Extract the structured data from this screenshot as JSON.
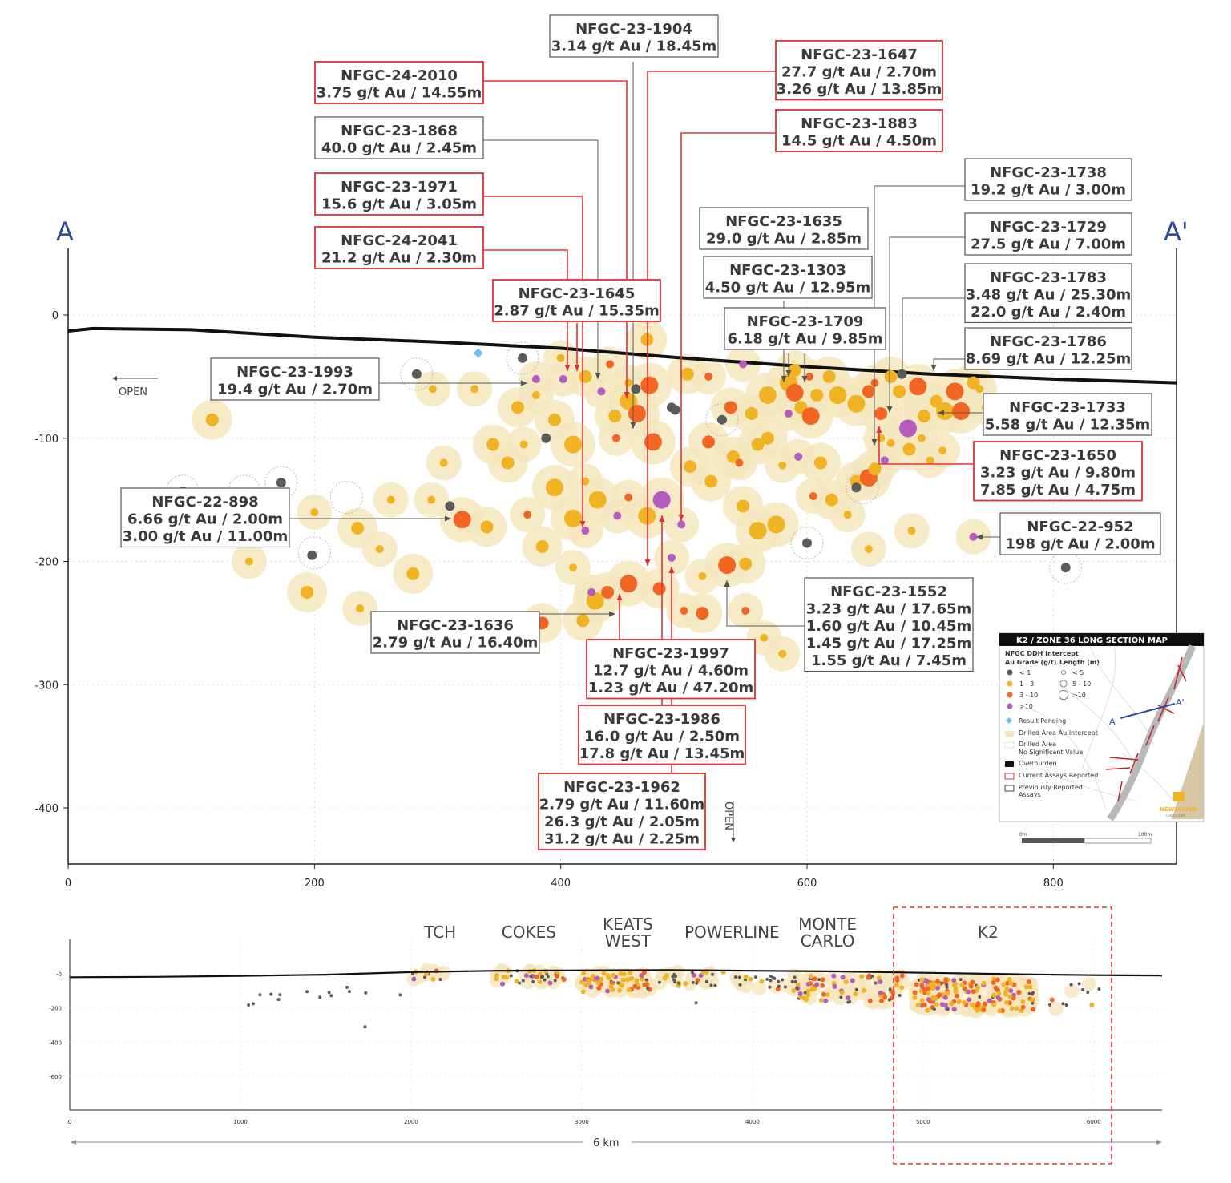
{
  "colors": {
    "grade_lt1": "#5b5b5b",
    "grade_1_3": "#f0b323",
    "grade_3_10": "#f26522",
    "grade_gt10": "#b55cbe",
    "halo": "#f5e6bd",
    "result_pending": "#6fc0ea",
    "current_box": "#e03236",
    "previous_box": "#555555",
    "section_blue": "#2b4aa0",
    "zone_box": "#e03236"
  },
  "section_labels": {
    "left": "A",
    "right": "A'"
  },
  "open_labels": {
    "left": "OPEN",
    "bottom": "OPEN"
  },
  "chart_data": [
    {
      "type": "scatter",
      "title": "",
      "xlabel": "",
      "ylabel": "",
      "xlim": [
        0,
        900
      ],
      "ylim": [
        -450,
        60
      ],
      "xticks": [
        "0",
        "200",
        "400",
        "600",
        "800"
      ],
      "yticks": [
        "0",
        "-100",
        "-200",
        "-300",
        "-400"
      ],
      "grid": true,
      "overburden": [
        [
          0,
          -13
        ],
        [
          20,
          -11
        ],
        [
          100,
          -12
        ],
        [
          200,
          -18
        ],
        [
          300,
          -22
        ],
        [
          400,
          -27
        ],
        [
          500,
          -35
        ],
        [
          600,
          -42
        ],
        [
          700,
          -48
        ],
        [
          800,
          -52
        ],
        [
          900,
          -55
        ]
      ],
      "intercepts": [
        [
          117,
          -85,
          "1-3",
          "m"
        ],
        [
          296,
          -60,
          "1-3",
          "s"
        ],
        [
          330,
          -60,
          "1-3",
          "s"
        ],
        [
          345,
          -105,
          "1-3",
          "m"
        ],
        [
          365,
          -75,
          "1-3",
          "m"
        ],
        [
          357,
          -120,
          "1-3",
          "m"
        ],
        [
          400,
          -35,
          "1-3",
          "s"
        ],
        [
          420,
          -50,
          "1-3",
          "m"
        ],
        [
          370,
          -105,
          "1-3",
          "s"
        ],
        [
          380,
          -65,
          "1-3",
          "s"
        ],
        [
          395,
          -85,
          "1-3",
          "m"
        ],
        [
          410,
          -105,
          "1-3",
          "l"
        ],
        [
          395,
          -140,
          "1-3",
          "l"
        ],
        [
          420,
          -135,
          "1-3",
          "s"
        ],
        [
          430,
          -150,
          "1-3",
          "l"
        ],
        [
          410,
          -165,
          "1-3",
          "l"
        ],
        [
          440,
          -40,
          "3-10",
          "s"
        ],
        [
          455,
          -70,
          "1-3",
          "l"
        ],
        [
          462,
          -80,
          "3-10",
          "l"
        ],
        [
          472,
          -57,
          "3-10",
          "l"
        ],
        [
          444,
          -82,
          "1-3",
          "m"
        ],
        [
          455,
          -55,
          "1-3",
          "s"
        ],
        [
          475,
          -103,
          "3-10",
          "l"
        ],
        [
          445,
          -100,
          "3-10",
          "s"
        ],
        [
          433,
          -62,
          "gt10",
          "s"
        ],
        [
          380,
          -52,
          "gt10",
          "s"
        ],
        [
          402,
          -52,
          "gt10",
          "s"
        ],
        [
          446,
          -163,
          "gt10",
          "s"
        ],
        [
          420,
          -175,
          "gt10",
          "s"
        ],
        [
          470,
          -20,
          "1-3",
          "m"
        ],
        [
          305,
          -120,
          "1-3",
          "s"
        ],
        [
          295,
          -150,
          "1-3",
          "s"
        ],
        [
          320,
          -166,
          "3-10",
          "l"
        ],
        [
          340,
          -172,
          "1-3",
          "m"
        ],
        [
          200,
          -160,
          "1-3",
          "s"
        ],
        [
          147,
          -200,
          "1-3",
          "s"
        ],
        [
          194,
          -225,
          "1-3",
          "m"
        ],
        [
          235,
          -173,
          "1-3",
          "m"
        ],
        [
          253,
          -190,
          "1-3",
          "s"
        ],
        [
          262,
          -150,
          "1-3",
          "s"
        ],
        [
          280,
          -210,
          "1-3",
          "m"
        ],
        [
          237,
          -238,
          "1-3",
          "s"
        ],
        [
          373,
          -162,
          "3-10",
          "s"
        ],
        [
          385,
          -188,
          "1-3",
          "m"
        ],
        [
          410,
          -205,
          "1-3",
          "s"
        ],
        [
          455,
          -148,
          "3-10",
          "s"
        ],
        [
          470,
          -163,
          "1-3",
          "l"
        ],
        [
          482,
          -150,
          "gt10",
          "l"
        ],
        [
          498,
          -170,
          "gt10",
          "s"
        ],
        [
          505,
          -123,
          "1-3",
          "m"
        ],
        [
          520,
          -103,
          "3-10",
          "m"
        ],
        [
          522,
          -135,
          "1-3",
          "m"
        ],
        [
          540,
          -115,
          "1-3",
          "m"
        ],
        [
          548,
          -155,
          "1-3",
          "m"
        ],
        [
          490,
          -197,
          "gt10",
          "s"
        ],
        [
          515,
          -212,
          "1-3",
          "s"
        ],
        [
          535,
          -203,
          "3-10",
          "l"
        ],
        [
          550,
          -202,
          "1-3",
          "m"
        ],
        [
          480,
          -222,
          "3-10",
          "m"
        ],
        [
          455,
          -218,
          "3-10",
          "l"
        ],
        [
          438,
          -225,
          "3-10",
          "m"
        ],
        [
          428,
          -232,
          "1-3",
          "l"
        ],
        [
          418,
          -248,
          "1-3",
          "m"
        ],
        [
          385,
          -250,
          "3-10",
          "m"
        ],
        [
          425,
          -225,
          "gt10",
          "s"
        ],
        [
          500,
          -240,
          "3-10",
          "s"
        ],
        [
          515,
          -242,
          "3-10",
          "m"
        ],
        [
          550,
          -240,
          "3-10",
          "s"
        ],
        [
          580,
          -275,
          "1-3",
          "s"
        ],
        [
          565,
          -262,
          "1-3",
          "s"
        ],
        [
          560,
          -175,
          "1-3",
          "l"
        ],
        [
          575,
          -170,
          "1-3",
          "l"
        ],
        [
          545,
          -120,
          "3-10",
          "s"
        ],
        [
          560,
          -105,
          "1-3",
          "m"
        ],
        [
          568,
          -100,
          "1-3",
          "m"
        ],
        [
          580,
          -122,
          "1-3",
          "s"
        ],
        [
          593,
          -115,
          "gt10",
          "s"
        ],
        [
          611,
          -120,
          "1-3",
          "m"
        ],
        [
          605,
          -147,
          "3-10",
          "s"
        ],
        [
          620,
          -150,
          "1-3",
          "m"
        ],
        [
          640,
          -135,
          "1-3",
          "m"
        ],
        [
          650,
          -132,
          "3-10",
          "l"
        ],
        [
          655,
          -125,
          "1-3",
          "m"
        ],
        [
          650,
          -190,
          "1-3",
          "s"
        ],
        [
          633,
          -162,
          "1-3",
          "s"
        ],
        [
          663,
          -118,
          "gt10",
          "s"
        ],
        [
          668,
          -104,
          "1-3",
          "s"
        ],
        [
          683,
          -109,
          "1-3",
          "m"
        ],
        [
          700,
          -118,
          "1-3",
          "s"
        ],
        [
          710,
          -110,
          "1-3",
          "s"
        ],
        [
          520,
          -50,
          "3-10",
          "s"
        ],
        [
          538,
          -75,
          "3-10",
          "m"
        ],
        [
          555,
          -80,
          "1-3",
          "m"
        ],
        [
          568,
          -65,
          "1-3",
          "l"
        ],
        [
          585,
          -55,
          "1-3",
          "l"
        ],
        [
          590,
          -63,
          "3-10",
          "l"
        ],
        [
          595,
          -75,
          "1-3",
          "m"
        ],
        [
          603,
          -82,
          "3-10",
          "l"
        ],
        [
          608,
          -65,
          "1-3",
          "m"
        ],
        [
          618,
          -50,
          "1-3",
          "m"
        ],
        [
          625,
          -65,
          "1-3",
          "l"
        ],
        [
          640,
          -72,
          "1-3",
          "l"
        ],
        [
          650,
          -62,
          "3-10",
          "m"
        ],
        [
          660,
          -80,
          "3-10",
          "m"
        ],
        [
          655,
          -55,
          "3-10",
          "s"
        ],
        [
          668,
          -50,
          "1-3",
          "m"
        ],
        [
          675,
          -62,
          "1-3",
          "m"
        ],
        [
          690,
          -58,
          "3-10",
          "l"
        ],
        [
          695,
          -82,
          "1-3",
          "m"
        ],
        [
          705,
          -70,
          "1-3",
          "m"
        ],
        [
          712,
          -78,
          "1-3",
          "l"
        ],
        [
          720,
          -62,
          "3-10",
          "l"
        ],
        [
          725,
          -78,
          "3-10",
          "l"
        ],
        [
          735,
          -55,
          "1-3",
          "m"
        ],
        [
          740,
          -60,
          "1-3",
          "s"
        ],
        [
          745,
          -75,
          "1-3",
          "s"
        ],
        [
          590,
          -45,
          "1-3",
          "m"
        ],
        [
          602,
          -50,
          "3-10",
          "s"
        ],
        [
          585,
          -80,
          "gt10",
          "s"
        ],
        [
          682,
          -92,
          "gt10",
          "l"
        ],
        [
          693,
          -100,
          "1-3",
          "s"
        ],
        [
          735,
          -180,
          "gt10",
          "s"
        ],
        [
          685,
          -175,
          "1-3",
          "s"
        ],
        [
          503,
          -48,
          "1-3",
          "m"
        ],
        [
          548,
          -40,
          "gt10",
          "s"
        ],
        [
          660,
          -100,
          "1-3",
          "s"
        ]
      ],
      "low_grade_holes": [
        [
          93,
          -143
        ],
        [
          173,
          -136
        ],
        [
          198,
          -195
        ],
        [
          283,
          -48
        ],
        [
          310,
          -155
        ],
        [
          369,
          -35
        ],
        [
          388,
          -100
        ],
        [
          461,
          -60
        ],
        [
          490,
          -75
        ],
        [
          493,
          -77
        ],
        [
          531,
          -85
        ],
        [
          600,
          -185
        ],
        [
          640,
          -140
        ],
        [
          677,
          -48
        ],
        [
          810,
          -205
        ]
      ],
      "no_significant": [
        [
          93,
          -143
        ],
        [
          143,
          -143
        ],
        [
          173,
          -136
        ],
        [
          200,
          -193
        ],
        [
          226,
          -148
        ],
        [
          283,
          -48
        ],
        [
          369,
          -35
        ],
        [
          531,
          -85
        ],
        [
          600,
          -185
        ],
        [
          810,
          -205
        ],
        [
          645,
          -140
        ]
      ],
      "pending": [
        [
          333,
          -31
        ]
      ]
    },
    {
      "type": "scatter",
      "title": "",
      "xlim": [
        0,
        6400
      ],
      "ylim": [
        -700,
        100
      ],
      "xticks": [
        "0",
        "1000",
        "2000",
        "3000",
        "4000",
        "5000",
        "6000"
      ],
      "yticks": [
        "-0",
        "-200",
        "-400",
        "-600"
      ],
      "zones": [
        "TCH",
        "COKES",
        "KEATS\nWEST",
        "POWERLINE",
        "MONTE\nCARLO",
        "K2"
      ],
      "zone_x": [
        2170,
        2690,
        3270,
        3880,
        4440,
        5380
      ],
      "distance_label": "6 km",
      "k2_box_x": [
        4850,
        6120
      ]
    }
  ],
  "callouts": [
    {
      "id": "nfgc-23-1904",
      "lines": [
        "NFGC-23-1904",
        "3.14 g/t Au / 18.45m"
      ],
      "status": "previous"
    },
    {
      "id": "nfgc-24-2010",
      "lines": [
        "NFGC-24-2010",
        "3.75 g/t Au / 14.55m"
      ],
      "status": "current"
    },
    {
      "id": "nfgc-23-1647",
      "lines": [
        "NFGC-23-1647",
        "27.7 g/t Au / 2.70m",
        "3.26 g/t Au / 13.85m"
      ],
      "status": "current"
    },
    {
      "id": "nfgc-23-1868",
      "lines": [
        "NFGC-23-1868",
        "40.0 g/t Au / 2.45m"
      ],
      "status": "previous"
    },
    {
      "id": "nfgc-23-1883",
      "lines": [
        "NFGC-23-1883",
        "14.5 g/t Au / 4.50m"
      ],
      "status": "current"
    },
    {
      "id": "nfgc-23-1971",
      "lines": [
        "NFGC-23-1971",
        "15.6 g/t Au / 3.05m"
      ],
      "status": "current"
    },
    {
      "id": "nfgc-23-1738",
      "lines": [
        "NFGC-23-1738",
        "19.2 g/t Au / 3.00m"
      ],
      "status": "previous"
    },
    {
      "id": "nfgc-23-1635",
      "lines": [
        "NFGC-23-1635",
        "29.0 g/t Au / 2.85m"
      ],
      "status": "previous"
    },
    {
      "id": "nfgc-24-2041",
      "lines": [
        "NFGC-24-2041",
        "21.2 g/t Au / 2.30m"
      ],
      "status": "current"
    },
    {
      "id": "nfgc-23-1729",
      "lines": [
        "NFGC-23-1729",
        "27.5 g/t Au / 7.00m"
      ],
      "status": "previous"
    },
    {
      "id": "nfgc-23-1303",
      "lines": [
        "NFGC-23-1303",
        "4.50 g/t Au / 12.95m"
      ],
      "status": "previous"
    },
    {
      "id": "nfgc-23-1645",
      "lines": [
        "NFGC-23-1645",
        "2.87 g/t Au / 15.35m"
      ],
      "status": "current"
    },
    {
      "id": "nfgc-23-1783",
      "lines": [
        "NFGC-23-1783",
        "3.48 g/t Au / 25.30m",
        "22.0 g/t Au / 2.40m"
      ],
      "status": "previous"
    },
    {
      "id": "nfgc-23-1709",
      "lines": [
        "NFGC-23-1709",
        "6.18 g/t Au / 9.85m"
      ],
      "status": "previous"
    },
    {
      "id": "nfgc-23-1786",
      "lines": [
        "NFGC-23-1786",
        "8.69 g/t Au / 12.25m"
      ],
      "status": "previous"
    },
    {
      "id": "nfgc-23-1993",
      "lines": [
        "NFGC-23-1993",
        "19.4 g/t Au / 2.70m"
      ],
      "status": "previous"
    },
    {
      "id": "nfgc-23-1733",
      "lines": [
        "NFGC-23-1733",
        "5.58 g/t Au / 12.35m"
      ],
      "status": "previous"
    },
    {
      "id": "nfgc-23-1650",
      "lines": [
        "NFGC-23-1650",
        "3.23 g/t Au / 9.80m",
        "7.85 g/t Au / 4.75m"
      ],
      "status": "current"
    },
    {
      "id": "nfgc-22-898",
      "lines": [
        "NFGC-22-898",
        "6.66 g/t Au / 2.00m",
        "3.00 g/t Au / 11.00m"
      ],
      "status": "previous"
    },
    {
      "id": "nfgc-22-952",
      "lines": [
        "NFGC-22-952",
        "198 g/t Au / 2.00m"
      ],
      "status": "previous"
    },
    {
      "id": "nfgc-23-1552",
      "lines": [
        "NFGC-23-1552",
        "3.23 g/t Au / 17.65m",
        "1.60 g/t Au / 10.45m",
        "1.45 g/t Au / 17.25m",
        "1.55 g/t Au / 7.45m"
      ],
      "status": "previous"
    },
    {
      "id": "nfgc-23-1636",
      "lines": [
        "NFGC-23-1636",
        "2.79 g/t Au / 16.40m"
      ],
      "status": "previous"
    },
    {
      "id": "nfgc-23-1997",
      "lines": [
        "NFGC-23-1997",
        "12.7 g/t Au / 4.60m",
        "1.23 g/t Au / 47.20m"
      ],
      "status": "current"
    },
    {
      "id": "nfgc-23-1986",
      "lines": [
        "NFGC-23-1986",
        "16.0 g/t Au / 2.50m",
        "17.8 g/t Au / 13.45m"
      ],
      "status": "current"
    },
    {
      "id": "nfgc-23-1962",
      "lines": [
        "NFGC-23-1962",
        "2.79 g/t Au / 11.60m",
        "26.3 g/t Au / 2.05m",
        "31.2 g/t Au / 2.25m"
      ],
      "status": "current"
    }
  ],
  "legend": {
    "title": "K2 / ZONE 36 LONG SECTION MAP",
    "subtitle": "NFGC DDH Intercept",
    "grade_header": "Au Grade (g/t)",
    "length_header": "Length (m)",
    "grades": [
      "< 1",
      "1 - 3",
      "3 - 10",
      ">10"
    ],
    "lengths": [
      "< 5",
      "5 - 10",
      ">10"
    ],
    "items": [
      "Result Pending",
      "Drilled Area Au Intercept",
      "Drilled Area",
      "No Significant Value",
      "Overburden",
      "Current Assays Reported",
      "Previously Reported",
      "Assays"
    ],
    "map_labels": {
      "a": "A",
      "a_prime": "A'"
    },
    "scale_start": "0m",
    "scale_end": "100m",
    "logo_line1": "NEWFOUND",
    "logo_line2": "GOLD CORP"
  }
}
